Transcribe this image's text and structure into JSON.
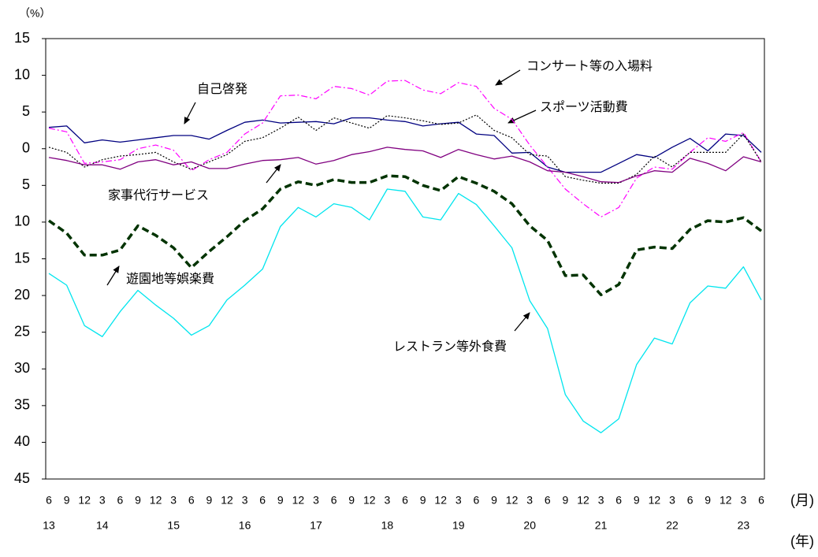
{
  "chart_data": {
    "type": "line",
    "y_unit": "（%）",
    "x_unit": "(月)",
    "year_unit": "(年)",
    "categories": [
      "6",
      "9",
      "12",
      "3",
      "6",
      "9",
      "12",
      "3",
      "6",
      "9",
      "12",
      "3",
      "6",
      "9",
      "12",
      "3",
      "6",
      "9",
      "12",
      "3",
      "6",
      "9",
      "12",
      "3",
      "6",
      "9",
      "12",
      "3",
      "6",
      "9",
      "12",
      "3",
      "6",
      "9",
      "12",
      "3",
      "6",
      "9",
      "12",
      "3",
      "6"
    ],
    "years": [
      "13",
      null,
      null,
      "14",
      null,
      null,
      null,
      "15",
      null,
      null,
      null,
      "16",
      null,
      null,
      null,
      "17",
      null,
      null,
      null,
      "18",
      null,
      null,
      null,
      "19",
      null,
      null,
      null,
      "20",
      null,
      null,
      null,
      "21",
      null,
      null,
      null,
      "22",
      null,
      null,
      null,
      "23",
      null
    ],
    "ylim": [
      -45,
      15
    ],
    "yticks": [
      15,
      10,
      5,
      0,
      {
        "value": -5,
        "label": "5"
      },
      {
        "value": -10,
        "label": "10"
      },
      {
        "value": -15,
        "label": "15"
      },
      {
        "value": -20,
        "label": "20"
      },
      {
        "value": -25,
        "label": "25"
      },
      {
        "value": -30,
        "label": "30"
      },
      {
        "value": -35,
        "label": "35"
      },
      {
        "value": -40,
        "label": "40"
      },
      {
        "value": -45,
        "label": "45"
      }
    ],
    "series": [
      {
        "name": "自己啓発",
        "color": "#000080",
        "dash": "solid",
        "width": 1.3,
        "values": [
          2.9,
          3.1,
          0.8,
          1.2,
          0.9,
          1.2,
          1.5,
          1.8,
          1.8,
          1.3,
          2.5,
          3.6,
          3.9,
          3.5,
          3.6,
          3.7,
          3.4,
          4.2,
          4.2,
          3.9,
          3.7,
          3.1,
          3.4,
          3.6,
          2.0,
          1.8,
          -0.6,
          -0.5,
          -2.5,
          -3.2,
          -3.2,
          -3.2,
          -2.0,
          -0.8,
          -1.2,
          0.2,
          1.4,
          -0.3,
          2.0,
          1.8,
          -0.5
        ]
      },
      {
        "name": "コンサート等の入場料",
        "color": "#ff00ff",
        "dash": "dashdot",
        "width": 1.2,
        "values": [
          2.8,
          2.3,
          -2.0,
          -1.8,
          -1.5,
          0,
          0.5,
          -0.2,
          -3.0,
          -1.5,
          -0.5,
          2.0,
          3.5,
          7.2,
          7.3,
          6.8,
          8.5,
          8.2,
          7.3,
          9.2,
          9.3,
          8.0,
          7.5,
          9.0,
          8.5,
          5.5,
          4.0,
          0.5,
          -2.5,
          -5.5,
          -7.5,
          -9.3,
          -8.0,
          -4.0,
          -2.5,
          -2.8,
          -0.5,
          1.5,
          1.0,
          2.2,
          -1.8
        ]
      },
      {
        "name": "スポーツ活動費",
        "color": "#000000",
        "dash": "dot",
        "width": 1.2,
        "values": [
          0.2,
          -0.5,
          -2.5,
          -1.5,
          -1.0,
          -0.8,
          -0.5,
          -1.8,
          -2.8,
          -1.8,
          -0.8,
          1.0,
          1.5,
          2.8,
          4.3,
          2.5,
          4.2,
          3.5,
          2.8,
          4.5,
          4.2,
          3.8,
          3.3,
          3.5,
          4.6,
          2.5,
          1.5,
          -0.8,
          -1.0,
          -3.8,
          -4.3,
          -4.7,
          -4.7,
          -3.5,
          -1.0,
          -2.5,
          -0.5,
          -0.5,
          -0.5,
          2.0,
          -1.8
        ]
      },
      {
        "name": "家事代行サービス",
        "color": "#800080",
        "dash": "solid",
        "width": 1.3,
        "values": [
          -1.2,
          -1.6,
          -2.2,
          -2.2,
          -2.8,
          -1.8,
          -1.5,
          -2.2,
          -1.8,
          -2.7,
          -2.7,
          -2.1,
          -1.6,
          -1.5,
          -1.2,
          -2.1,
          -1.6,
          -0.8,
          -0.4,
          0.2,
          -0.1,
          -0.3,
          -1.2,
          -0.1,
          -0.8,
          -1.4,
          -1.0,
          -1.8,
          -3.0,
          -3.2,
          -3.8,
          -4.5,
          -4.6,
          -3.7,
          -3.0,
          -3.2,
          -1.3,
          -2.0,
          -3.0,
          -1.1,
          -1.8
        ]
      },
      {
        "name": "遊園地等娯楽費",
        "color": "#003300",
        "dash": "dash",
        "width": 3.5,
        "values": [
          -9.8,
          -11.5,
          -14.5,
          -14.5,
          -13.8,
          -10.5,
          -11.8,
          -13.5,
          -16.2,
          -14,
          -12,
          -9.8,
          -8.2,
          -5.5,
          -4.5,
          -5,
          -4.2,
          -4.6,
          -4.6,
          -3.7,
          -3.8,
          -5,
          -5.7,
          -3.8,
          -4.7,
          -5.8,
          -7.5,
          -10.5,
          -12.5,
          -17.3,
          -17.2,
          -19.9,
          -18.5,
          -13.8,
          -13.4,
          -13.6,
          -11,
          -9.8,
          -10,
          -9.4,
          -11.2
        ]
      },
      {
        "name": "レストラン等外食費",
        "color": "#00e5ee",
        "dash": "solid",
        "width": 1.3,
        "values": [
          -17,
          -18.6,
          -24.1,
          -25.6,
          -22.2,
          -19.3,
          -21.3,
          -23.1,
          -25.4,
          -24.1,
          -20.6,
          -18.6,
          -16.4,
          -10.6,
          -8,
          -9.3,
          -7.5,
          -8,
          -9.7,
          -5.5,
          -5.8,
          -9.3,
          -9.7,
          -6.1,
          -7.6,
          -10.5,
          -13.5,
          -20.7,
          -24.5,
          -33.5,
          -37.1,
          -38.7,
          -36.8,
          -29.4,
          -25.8,
          -26.6,
          -21,
          -18.7,
          -19,
          -16.1,
          -20.6
        ]
      }
    ]
  }
}
